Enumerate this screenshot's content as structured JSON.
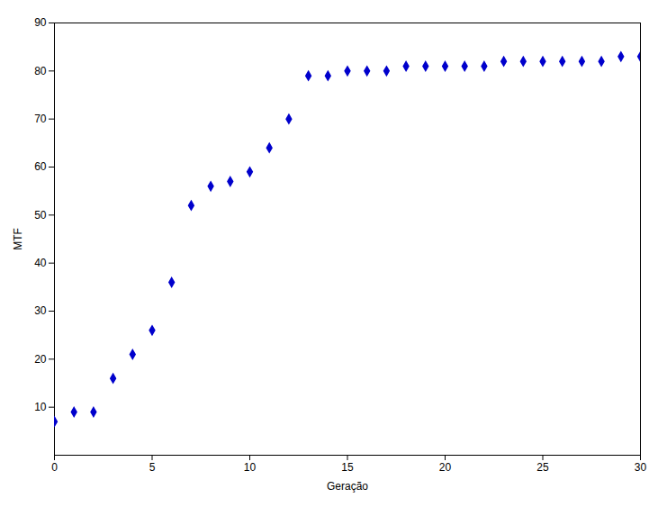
{
  "chart_data": {
    "type": "scatter",
    "x": [
      0,
      1,
      2,
      3,
      4,
      5,
      6,
      7,
      8,
      9,
      10,
      11,
      12,
      13,
      14,
      15,
      16,
      17,
      18,
      19,
      20,
      21,
      22,
      23,
      24,
      25,
      26,
      27,
      28,
      29,
      30
    ],
    "values": [
      7,
      9,
      9,
      16,
      21,
      26,
      36,
      52,
      56,
      57,
      59,
      64,
      70,
      79,
      79,
      80,
      80,
      80,
      81,
      81,
      81,
      81,
      81,
      82,
      82,
      82,
      82,
      82,
      82,
      83,
      83
    ],
    "color": "#0000cc",
    "marker": "diamond",
    "xlabel": "Geração",
    "ylabel": "MTF",
    "xlim": [
      0,
      30
    ],
    "ylim": [
      0,
      90
    ],
    "xticks": [
      0,
      5,
      10,
      15,
      20,
      25,
      30
    ],
    "yticks": [
      10,
      20,
      30,
      40,
      50,
      60,
      70,
      80,
      90
    ],
    "grid": false
  }
}
